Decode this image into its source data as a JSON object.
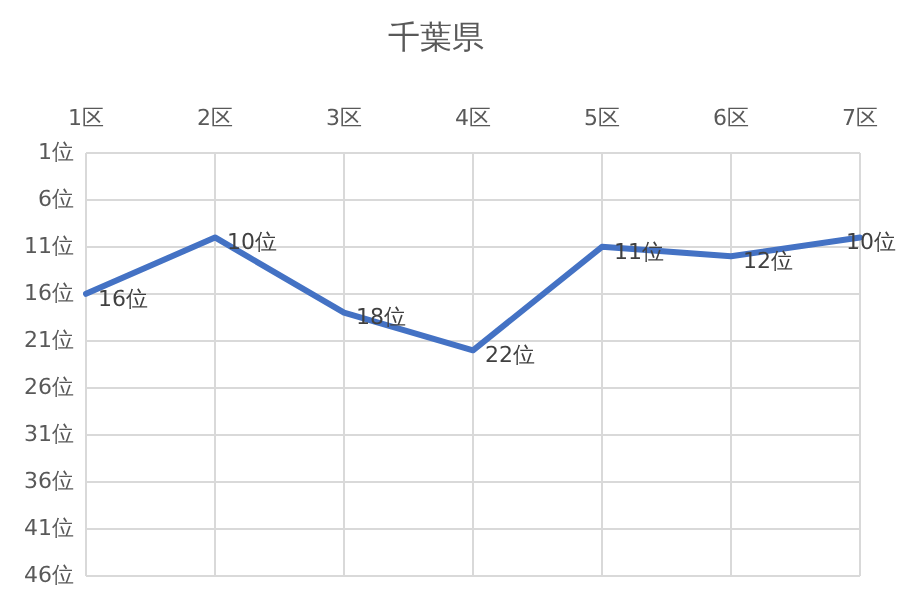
{
  "chart_data": {
    "type": "line",
    "title": "千葉県",
    "categories": [
      "1区",
      "2区",
      "3区",
      "4区",
      "5区",
      "6区",
      "7区"
    ],
    "series": [
      {
        "color": "#4472c4",
        "values": [
          16,
          10,
          18,
          22,
          11,
          12,
          10
        ],
        "value_labels": [
          "16位",
          "10位",
          "18位",
          "22位",
          "11位",
          "12位",
          "10位"
        ]
      }
    ],
    "ylim": [
      46,
      1
    ],
    "yticks": [
      {
        "value": 1,
        "label": "1位"
      },
      {
        "value": 6,
        "label": "6位"
      },
      {
        "value": 11,
        "label": "11位"
      },
      {
        "value": 16,
        "label": "16位"
      },
      {
        "value": 21,
        "label": "21位"
      },
      {
        "value": 26,
        "label": "26位"
      },
      {
        "value": 31,
        "label": "31位"
      },
      {
        "value": 36,
        "label": "36位"
      },
      {
        "value": 41,
        "label": "41位"
      },
      {
        "value": 46,
        "label": "46位"
      }
    ],
    "grid": true,
    "marker": "none",
    "line_style": "solid"
  }
}
